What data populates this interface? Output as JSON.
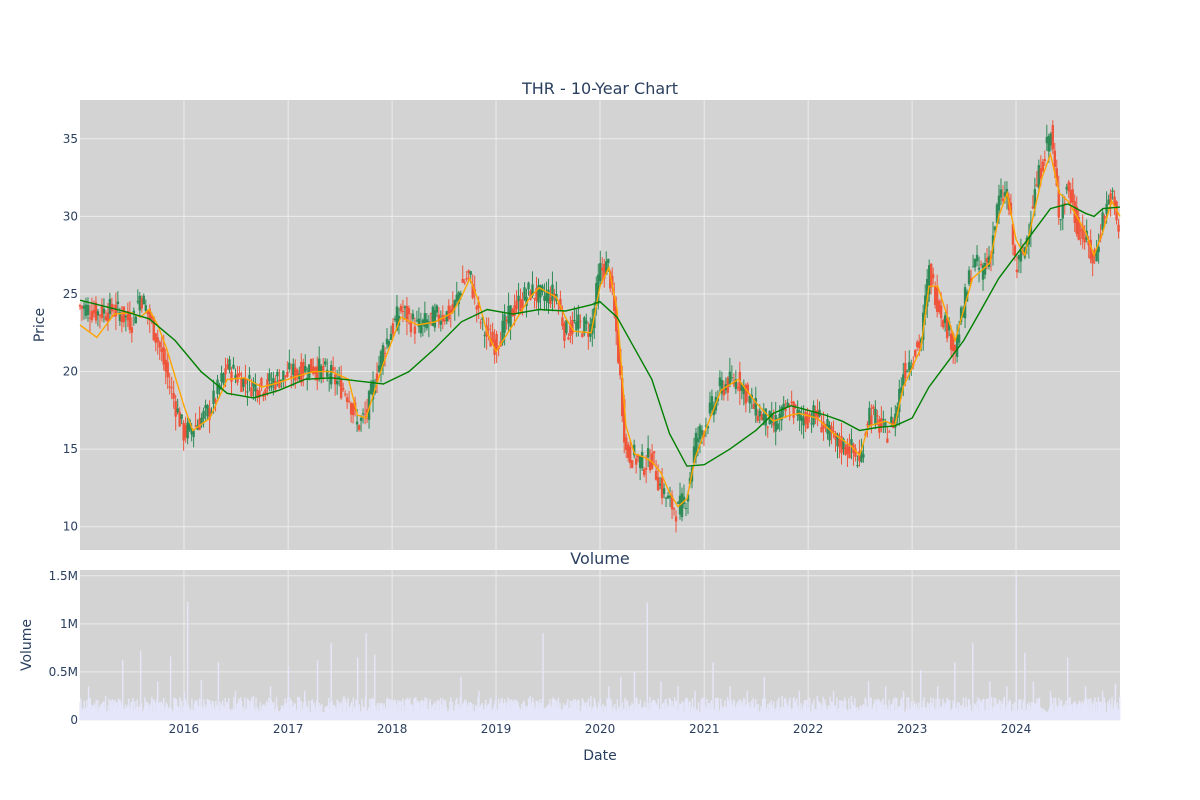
{
  "chart_data": [
    {
      "type": "candlestick",
      "title": "THR - 10-Year Chart",
      "xlabel": "",
      "ylabel": "Price",
      "xlim": [
        "2015-01-01",
        "2024-12-31"
      ],
      "ylim": [
        8.5,
        37.5
      ],
      "y_ticks": [
        10,
        15,
        20,
        25,
        30,
        35
      ],
      "x_ticks": [
        "2016",
        "2017",
        "2018",
        "2019",
        "2020",
        "2021",
        "2022",
        "2023",
        "2024"
      ],
      "grid": true,
      "legend": "none",
      "colors": {
        "up": "#2e8b57",
        "down": "#ef553b",
        "ma_short": "#ffa500",
        "ma_long": "#008000",
        "plot_bg": "#d3d3d3",
        "grid": "#ebebeb"
      },
      "series": [
        {
          "kind": "close",
          "x": [
            "2015-01-01",
            "2015-03-01",
            "2015-05-01",
            "2015-07-01",
            "2015-08-01",
            "2015-09-01",
            "2015-10-01",
            "2015-11-01",
            "2016-01-01",
            "2016-02-01",
            "2016-04-01",
            "2016-06-01",
            "2016-08-01",
            "2016-10-01",
            "2016-12-01",
            "2017-02-01",
            "2017-04-01",
            "2017-06-01",
            "2017-08-01",
            "2017-09-01",
            "2017-10-01",
            "2017-12-01",
            "2018-02-01",
            "2018-04-01",
            "2018-06-01",
            "2018-08-01",
            "2018-09-01",
            "2018-10-01",
            "2018-11-01",
            "2018-12-01",
            "2019-01-01",
            "2019-03-01",
            "2019-05-01",
            "2019-06-01",
            "2019-08-01",
            "2019-09-01",
            "2019-10-01",
            "2019-12-01",
            "2020-01-01",
            "2020-02-01",
            "2020-03-01",
            "2020-04-01",
            "2020-05-01",
            "2020-06-01",
            "2020-07-01",
            "2020-08-01",
            "2020-09-01",
            "2020-10-01",
            "2020-11-01",
            "2020-12-01",
            "2021-01-01",
            "2021-03-01",
            "2021-05-01",
            "2021-07-01",
            "2021-09-01",
            "2021-11-01",
            "2021-12-01",
            "2022-02-01",
            "2022-04-01",
            "2022-06-01",
            "2022-07-01",
            "2022-08-01",
            "2022-10-01",
            "2022-11-01",
            "2022-12-01",
            "2023-02-01",
            "2023-03-01",
            "2023-04-01",
            "2023-06-01",
            "2023-08-01",
            "2023-09-01",
            "2023-10-01",
            "2023-11-01",
            "2023-12-01",
            "2024-01-01",
            "2024-02-01",
            "2024-03-01",
            "2024-04-01",
            "2024-05-01",
            "2024-06-01",
            "2024-07-01",
            "2024-08-01",
            "2024-09-01",
            "2024-10-01",
            "2024-11-01",
            "2024-12-01",
            "2024-12-31"
          ],
          "values": [
            24.2,
            23.8,
            24.0,
            23.2,
            25.0,
            23.5,
            22.0,
            19.8,
            16.0,
            16.4,
            17.5,
            20.3,
            19.3,
            19.0,
            19.6,
            20.0,
            20.3,
            19.7,
            18.5,
            16.5,
            17.2,
            21.5,
            24.0,
            22.8,
            23.5,
            23.8,
            25.6,
            26.2,
            23.5,
            22.2,
            21.8,
            24.0,
            25.2,
            24.8,
            25.0,
            22.5,
            23.0,
            22.8,
            26.5,
            26.8,
            22.0,
            14.8,
            14.5,
            14.0,
            14.5,
            12.5,
            11.5,
            11.0,
            12.0,
            15.5,
            16.5,
            19.0,
            19.5,
            17.5,
            16.5,
            17.8,
            17.0,
            17.2,
            15.5,
            15.0,
            14.0,
            17.5,
            16.0,
            17.0,
            20.0,
            22.0,
            26.5,
            24.5,
            21.5,
            27.0,
            26.5,
            27.5,
            31.0,
            31.5,
            26.5,
            28.0,
            31.0,
            33.5,
            35.5,
            30.0,
            32.0,
            29.5,
            28.5,
            27.0,
            30.0,
            31.5,
            28.5
          ]
        },
        {
          "kind": "moving_average_short",
          "x": [
            "2015-01-01",
            "2015-03-01",
            "2015-05-01",
            "2015-07-01",
            "2015-08-01",
            "2015-09-01",
            "2015-10-01",
            "2015-11-01",
            "2016-01-01",
            "2016-02-01",
            "2016-04-01",
            "2016-06-01",
            "2016-08-01",
            "2016-10-01",
            "2016-12-01",
            "2017-02-01",
            "2017-04-01",
            "2017-06-01",
            "2017-08-01",
            "2017-09-01",
            "2017-10-01",
            "2017-12-01",
            "2018-02-01",
            "2018-04-01",
            "2018-06-01",
            "2018-08-01",
            "2018-09-01",
            "2018-10-01",
            "2018-11-01",
            "2018-12-01",
            "2019-01-01",
            "2019-03-01",
            "2019-05-01",
            "2019-06-01",
            "2019-08-01",
            "2019-09-01",
            "2019-10-01",
            "2019-12-01",
            "2020-01-01",
            "2020-02-01",
            "2020-03-01",
            "2020-04-01",
            "2020-05-01",
            "2020-06-01",
            "2020-07-01",
            "2020-08-01",
            "2020-09-01",
            "2020-10-01",
            "2020-11-01",
            "2020-12-01",
            "2021-01-01",
            "2021-03-01",
            "2021-05-01",
            "2021-07-01",
            "2021-09-01",
            "2021-11-01",
            "2021-12-01",
            "2022-02-01",
            "2022-04-01",
            "2022-06-01",
            "2022-07-01",
            "2022-08-01",
            "2022-10-01",
            "2022-11-01",
            "2022-12-01",
            "2023-02-01",
            "2023-03-01",
            "2023-04-01",
            "2023-06-01",
            "2023-08-01",
            "2023-09-01",
            "2023-10-01",
            "2023-11-01",
            "2023-12-01",
            "2024-01-01",
            "2024-02-01",
            "2024-03-01",
            "2024-04-01",
            "2024-05-01",
            "2024-06-01",
            "2024-07-01",
            "2024-08-01",
            "2024-09-01",
            "2024-10-01",
            "2024-11-01",
            "2024-12-01",
            "2024-12-31"
          ],
          "values": [
            23.0,
            22.2,
            23.7,
            23.8,
            23.5,
            24.0,
            23.0,
            21.5,
            17.8,
            16.2,
            17.0,
            19.5,
            19.6,
            19.0,
            19.3,
            19.7,
            20.0,
            20.0,
            19.5,
            17.2,
            17.0,
            20.5,
            23.5,
            23.0,
            23.2,
            23.8,
            24.8,
            26.0,
            24.5,
            22.5,
            21.3,
            23.0,
            24.8,
            25.4,
            24.8,
            23.5,
            22.6,
            22.5,
            25.5,
            26.7,
            24.0,
            16.5,
            14.7,
            14.5,
            14.2,
            13.5,
            12.2,
            11.3,
            11.8,
            14.5,
            16.0,
            18.8,
            19.5,
            18.0,
            16.8,
            17.2,
            17.3,
            17.0,
            16.0,
            15.2,
            14.6,
            16.5,
            16.8,
            16.5,
            19.0,
            21.5,
            25.5,
            25.5,
            22.0,
            26.0,
            26.5,
            27.0,
            30.0,
            31.5,
            28.5,
            27.5,
            30.0,
            32.5,
            34.0,
            31.5,
            31.0,
            30.0,
            29.0,
            27.5,
            29.0,
            31.0,
            30.0
          ]
        },
        {
          "kind": "moving_average_long",
          "x": [
            "2015-01-01",
            "2015-06-01",
            "2015-09-01",
            "2015-12-01",
            "2016-03-01",
            "2016-06-01",
            "2016-09-01",
            "2016-12-01",
            "2017-03-01",
            "2017-06-01",
            "2017-09-01",
            "2017-12-01",
            "2018-03-01",
            "2018-06-01",
            "2018-09-01",
            "2018-12-01",
            "2019-03-01",
            "2019-06-01",
            "2019-09-01",
            "2019-12-01",
            "2020-01-01",
            "2020-03-01",
            "2020-05-01",
            "2020-07-01",
            "2020-09-01",
            "2020-11-01",
            "2021-01-01",
            "2021-04-01",
            "2021-07-01",
            "2021-09-01",
            "2021-11-01",
            "2022-01-01",
            "2022-03-01",
            "2022-05-01",
            "2022-07-01",
            "2022-09-01",
            "2022-11-01",
            "2023-01-01",
            "2023-03-01",
            "2023-05-01",
            "2023-07-01",
            "2023-09-01",
            "2023-11-01",
            "2024-01-01",
            "2024-03-01",
            "2024-05-01",
            "2024-07-01",
            "2024-09-01",
            "2024-10-01",
            "2024-11-01",
            "2024-12-31"
          ],
          "values": [
            24.6,
            23.9,
            23.4,
            22.0,
            20.0,
            18.6,
            18.3,
            18.8,
            19.5,
            19.6,
            19.4,
            19.2,
            20.0,
            21.5,
            23.2,
            24.0,
            23.7,
            24.0,
            23.9,
            24.3,
            24.5,
            23.5,
            21.5,
            19.5,
            16.0,
            13.9,
            14.0,
            15.0,
            16.2,
            17.3,
            17.8,
            17.5,
            17.2,
            16.8,
            16.2,
            16.4,
            16.5,
            17.0,
            19.0,
            20.5,
            22.0,
            24.0,
            26.0,
            27.5,
            29.0,
            30.5,
            30.8,
            30.2,
            30.0,
            30.5,
            30.6
          ]
        }
      ]
    },
    {
      "type": "bar",
      "title": "Volume",
      "xlabel": "Date",
      "ylabel": "Volume",
      "xlim": [
        "2015-01-01",
        "2024-12-31"
      ],
      "ylim": [
        0,
        1560000
      ],
      "y_ticks": [
        0,
        500000,
        1000000,
        1500000
      ],
      "y_tick_labels": [
        "0",
        "0.5M",
        "1M",
        "1.5M"
      ],
      "x_ticks": [
        "2016",
        "2017",
        "2018",
        "2019",
        "2020",
        "2021",
        "2022",
        "2023",
        "2024"
      ],
      "grid": true,
      "legend": "none",
      "colors": {
        "bar": "#e6e6fa",
        "plot_bg": "#d3d3d3",
        "grid": "#ebebeb"
      },
      "x": [
        "2015-02-01",
        "2015-04-01",
        "2015-06-01",
        "2015-08-01",
        "2015-10-01",
        "2015-11-15",
        "2016-01-01",
        "2016-01-15",
        "2016-03-01",
        "2016-05-01",
        "2016-07-01",
        "2016-09-01",
        "2016-11-01",
        "2017-01-01",
        "2017-03-01",
        "2017-04-15",
        "2017-06-01",
        "2017-07-15",
        "2017-09-01",
        "2017-10-01",
        "2017-11-01",
        "2018-01-01",
        "2018-03-01",
        "2018-05-01",
        "2018-07-01",
        "2018-09-01",
        "2018-11-01",
        "2019-01-01",
        "2019-03-01",
        "2019-05-01",
        "2019-06-15",
        "2019-08-01",
        "2019-10-01",
        "2019-12-01",
        "2020-02-01",
        "2020-03-15",
        "2020-05-01",
        "2020-06-15",
        "2020-08-01",
        "2020-10-01",
        "2020-12-01",
        "2021-02-01",
        "2021-04-01",
        "2021-06-01",
        "2021-08-01",
        "2021-10-01",
        "2021-12-01",
        "2022-02-01",
        "2022-04-01",
        "2022-06-01",
        "2022-08-01",
        "2022-10-01",
        "2022-12-01",
        "2023-02-01",
        "2023-04-01",
        "2023-06-01",
        "2023-08-01",
        "2023-10-01",
        "2023-12-01",
        "2024-01-01",
        "2024-02-01",
        "2024-03-01",
        "2024-05-01",
        "2024-07-01",
        "2024-09-01",
        "2024-11-01",
        "2024-12-15"
      ],
      "values": [
        350000,
        250000,
        620000,
        720000,
        400000,
        660000,
        300000,
        1230000,
        420000,
        600000,
        300000,
        250000,
        350000,
        560000,
        300000,
        620000,
        800000,
        250000,
        650000,
        900000,
        680000,
        220000,
        200000,
        180000,
        200000,
        450000,
        300000,
        250000,
        200000,
        250000,
        900000,
        200000,
        220000,
        250000,
        350000,
        450000,
        500000,
        1220000,
        400000,
        350000,
        300000,
        600000,
        350000,
        300000,
        450000,
        250000,
        300000,
        250000,
        300000,
        250000,
        400000,
        350000,
        300000,
        520000,
        350000,
        600000,
        800000,
        400000,
        350000,
        1490000,
        700000,
        400000,
        300000,
        650000,
        350000,
        300000,
        380000
      ]
    }
  ]
}
